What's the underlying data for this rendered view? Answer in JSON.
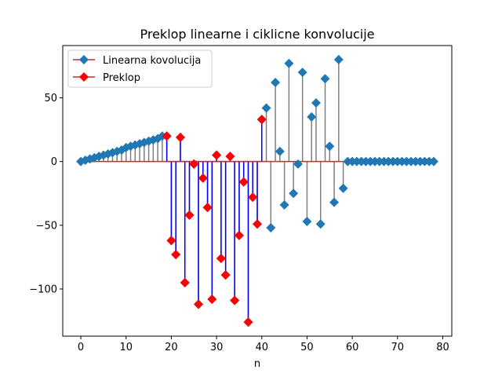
{
  "chart_data": {
    "type": "stem",
    "title": "Preklop linearne i ciklicne konvolucije",
    "xlabel": "n",
    "ylabel": "",
    "xlim": [
      -4,
      82
    ],
    "ylim": [
      -137,
      91
    ],
    "xticks": [
      0,
      10,
      20,
      30,
      40,
      50,
      60,
      70,
      80
    ],
    "yticks": [
      -100,
      -50,
      0,
      50
    ],
    "legend_position": "top-left",
    "series": [
      {
        "name": "Linearna kovolucija",
        "marker": "diamond",
        "marker_color": "#1f77b4",
        "stem_color": "#808080",
        "baseline_color": "#d62728",
        "x": [
          0,
          1,
          2,
          3,
          4,
          5,
          6,
          7,
          8,
          9,
          10,
          11,
          12,
          13,
          14,
          15,
          16,
          17,
          18,
          19,
          20,
          21,
          22,
          23,
          24,
          25,
          26,
          27,
          28,
          29,
          30,
          31,
          32,
          33,
          34,
          35,
          36,
          37,
          38,
          39,
          40,
          41,
          42,
          43,
          44,
          45,
          46,
          47,
          48,
          49,
          50,
          51,
          52,
          53,
          54,
          55,
          56,
          57,
          58,
          59,
          60,
          61,
          62,
          63,
          64,
          65,
          66,
          67,
          68,
          69,
          70,
          71,
          72,
          73,
          74,
          75,
          76,
          77,
          78
        ],
        "values": [
          0,
          1,
          2,
          3,
          4,
          5,
          6,
          7,
          8,
          9,
          11,
          12,
          13,
          14,
          15,
          16,
          17,
          18,
          20,
          20,
          -62,
          -73,
          19,
          -95,
          -42,
          -2,
          -112,
          -13,
          -36,
          -108,
          5,
          -76,
          -89,
          4,
          -109,
          -58,
          -16,
          -126,
          -28,
          -49,
          33,
          42,
          -52,
          62,
          8,
          -34,
          77,
          -25,
          -2,
          70,
          -47,
          35,
          46,
          -49,
          65,
          12,
          -32,
          80,
          -21,
          0,
          0,
          0,
          0,
          0,
          0,
          0,
          0,
          0,
          0,
          0,
          0,
          0,
          0,
          0,
          0,
          0,
          0,
          0,
          0
        ]
      },
      {
        "name": "Preklop",
        "marker": "diamond",
        "marker_color": "#ff0000",
        "stem_color": "#0000ff",
        "baseline_color": "#d62728",
        "x": [
          19,
          20,
          21,
          22,
          23,
          24,
          25,
          26,
          27,
          28,
          29,
          30,
          31,
          32,
          33,
          34,
          35,
          36,
          37,
          38,
          39,
          40
        ],
        "values": [
          20,
          -62,
          -73,
          19,
          -95,
          -42,
          -2,
          -112,
          -13,
          -36,
          -108,
          5,
          -76,
          -89,
          4,
          -109,
          -58,
          -16,
          -126,
          -28,
          -49,
          33
        ]
      }
    ]
  }
}
